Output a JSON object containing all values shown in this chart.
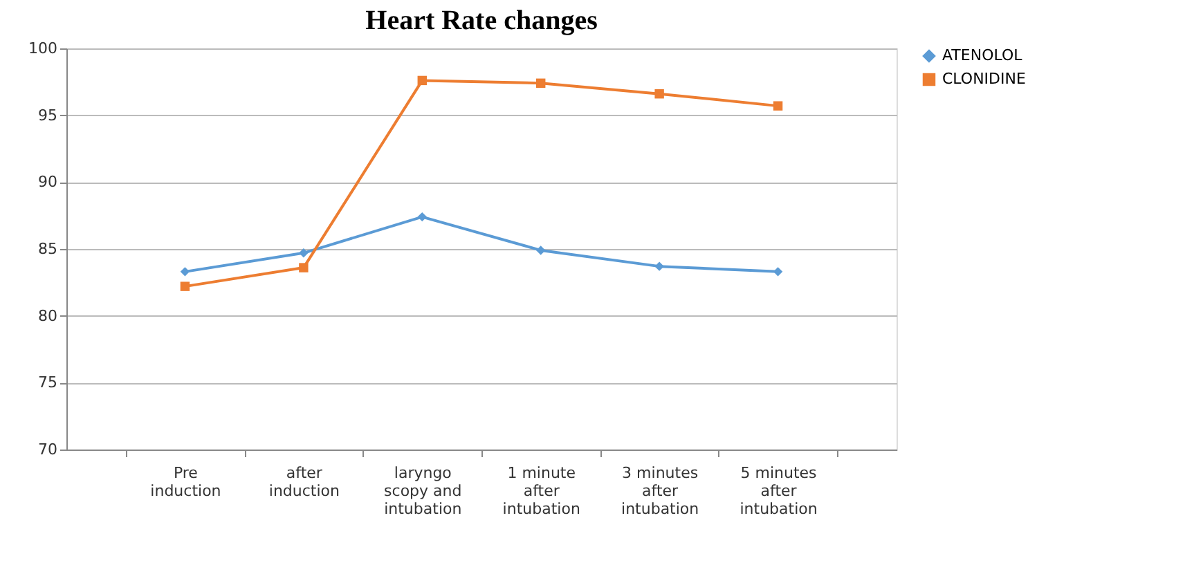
{
  "chart_data": {
    "type": "line",
    "title": "Heart Rate changes",
    "categories": [
      "Pre\ninduction",
      "after\ninduction",
      "laryngo\nscopy and\nintubation",
      "1 minute\nafter\nintubation",
      "3 minutes\nafter\nintubation",
      "5 minutes\nafter\nintubation"
    ],
    "series": [
      {
        "name": "ATENOLOL",
        "color": "#5b9bd5",
        "marker": "diamond",
        "values": [
          83.3,
          84.7,
          87.4,
          84.9,
          83.7,
          83.3
        ]
      },
      {
        "name": "CLONIDINE",
        "color": "#ed7d31",
        "marker": "square",
        "values": [
          82.2,
          83.6,
          97.6,
          97.4,
          96.6,
          95.7
        ]
      }
    ],
    "ylim": [
      70,
      100
    ],
    "yticks": [
      70,
      75,
      80,
      85,
      90,
      95,
      100
    ],
    "grid": "y",
    "legend": "right",
    "line_style": "solid"
  }
}
